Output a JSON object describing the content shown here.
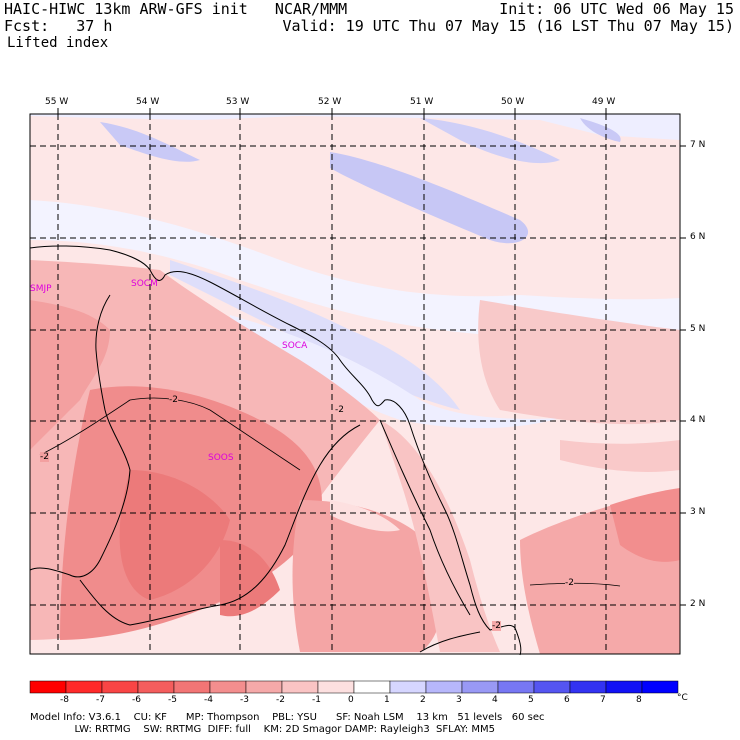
{
  "header": {
    "model_title": "HAIC-HIWC 13km ARW-GFS init   NCAR/MMM",
    "init": "Init: 06 UTC Wed 06 May 15",
    "fcst": "Fcst:   37 h",
    "valid": "Valid: 19 UTC Thu 07 May 15 (16 LST Thu 07 May 15)",
    "field": "Lifted index"
  },
  "map": {
    "longitude_labels": [
      "55 W",
      "54 W",
      "53 W",
      "52 W",
      "51 W",
      "50 W",
      "49 W"
    ],
    "latitude_labels": [
      "7 N",
      "6 N",
      "5 N",
      "4 N",
      "3 N",
      "2 N"
    ],
    "contour_labels": [
      "-2",
      "-2",
      "-2",
      "-2",
      "-2"
    ],
    "stations": [
      "SMJP",
      "SOCM",
      "SOCA",
      "SOOS"
    ],
    "station_color": "#dd00dd",
    "coast_color": "#000000",
    "grid_color": "#000000"
  },
  "colorbar": {
    "ticks": [
      "-8",
      "-7",
      "-6",
      "-5",
      "-4",
      "-3",
      "-2",
      "-1",
      "0",
      "1",
      "2",
      "3",
      "4",
      "5",
      "6",
      "7",
      "8"
    ],
    "unit": "°C",
    "colors": [
      "#ff0000",
      "#ff2a2a",
      "#f94545",
      "#f45d5d",
      "#f27575",
      "#f38e8e",
      "#f5a9a9",
      "#fac4c4",
      "#fde0e0",
      "#ffffff",
      "#d6d6ff",
      "#b7b7fb",
      "#9999f5",
      "#7777f3",
      "#5555f1",
      "#3333f2",
      "#1111f5",
      "#0000ff"
    ]
  },
  "footer": {
    "line1": "Model Info: V3.6.1    CU: KF      MP: Thompson    PBL: YSU      SF: Noah LSM    13 km   51 levels   60 sec",
    "line2": "              LW: RRTMG    SW: RRTMG  DIFF: full    KM: 2D Smagor DAMP: Rayleigh3  SFLAY: MM5"
  }
}
